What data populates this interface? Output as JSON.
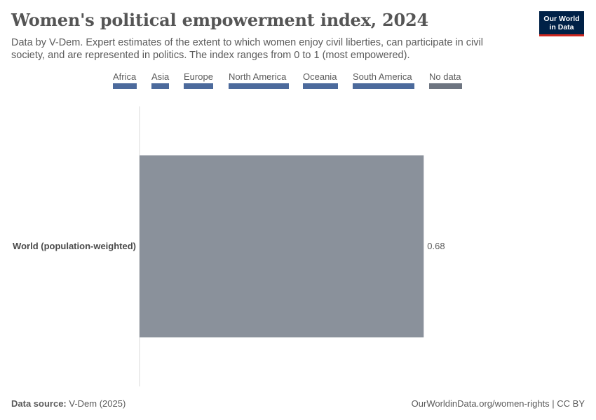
{
  "header": {
    "title": "Women's political empowerment index, 2024",
    "subtitle": "Data by V-Dem. Expert estimates of the extent to which women enjoy civil liberties, can participate in civil society, and are represented in politics. The index ranges from 0 to 1 (most empowered).",
    "logo_line1": "Our World",
    "logo_line2": "in Data"
  },
  "legend": [
    {
      "label": "Africa",
      "color": "#4c6a9c"
    },
    {
      "label": "Asia",
      "color": "#4c6a9c"
    },
    {
      "label": "Europe",
      "color": "#4c6a9c"
    },
    {
      "label": "North America",
      "color": "#4c6a9c"
    },
    {
      "label": "Oceania",
      "color": "#4c6a9c"
    },
    {
      "label": "South America",
      "color": "#4c6a9c"
    },
    {
      "label": "No data",
      "color": "#6e7581"
    }
  ],
  "chart_data": {
    "type": "bar",
    "orientation": "horizontal",
    "categories": [
      "World (population-weighted)"
    ],
    "values": [
      0.68
    ],
    "value_labels": [
      "0.68"
    ],
    "bar_color": "#8a919b",
    "xlim": [
      0,
      1
    ]
  },
  "footer": {
    "source_label": "Data source:",
    "source_value": "V-Dem (2025)",
    "credit": "OurWorldinData.org/women-rights | CC BY"
  }
}
